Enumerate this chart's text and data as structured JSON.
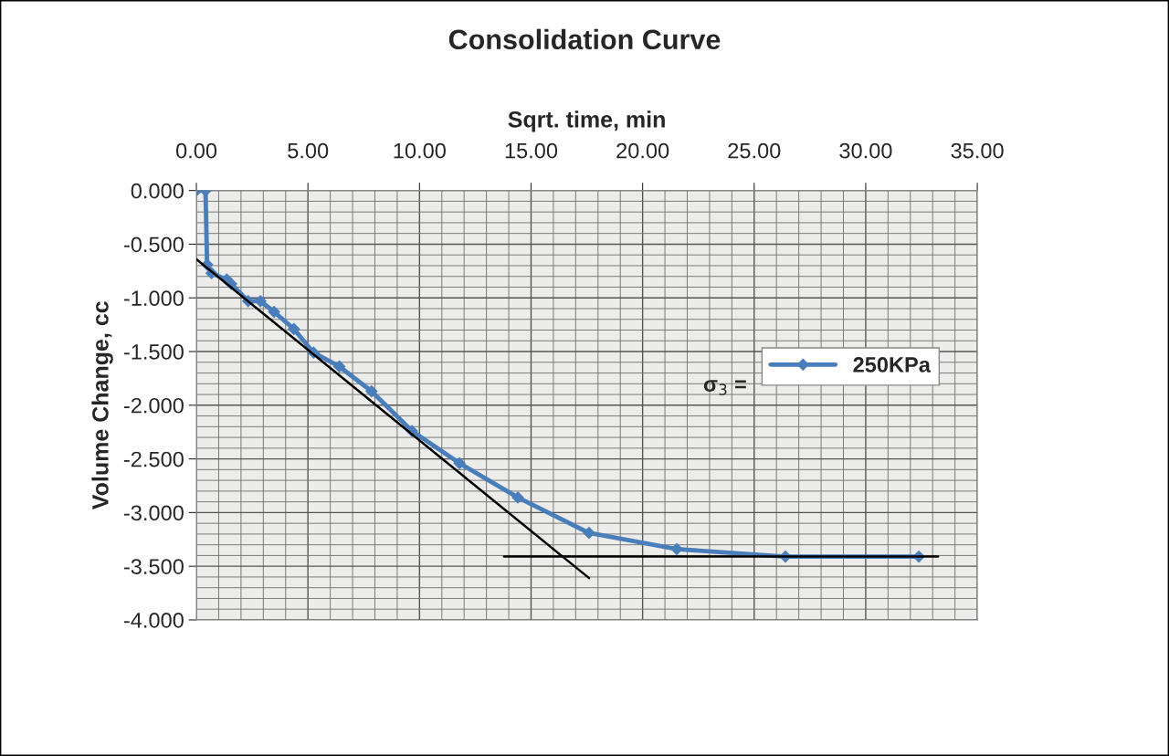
{
  "chart_data": {
    "type": "line",
    "title": "Consolidation Curve",
    "xlabel": "Sqrt. time, min",
    "ylabel": "Volume Change, cc",
    "series": [
      {
        "name": "250KPa",
        "color": "#4a7ebb",
        "marker": "diamond",
        "line_style": "solid",
        "x": [
          0.0,
          0.41,
          0.48,
          0.68,
          1.36,
          1.56,
          2.32,
          2.87,
          3.48,
          4.37,
          5.25,
          6.41,
          7.85,
          9.66,
          11.79,
          14.41,
          17.6,
          21.53,
          26.4,
          32.38
        ],
        "values": [
          0.0,
          0.0,
          -0.69,
          -0.77,
          -0.83,
          -0.87,
          -1.03,
          -1.03,
          -1.13,
          -1.29,
          -1.51,
          -1.64,
          -1.87,
          -2.24,
          -2.54,
          -2.86,
          -3.19,
          -3.34,
          -3.41,
          -3.41
        ]
      },
      {
        "color": "#000000",
        "marker": "none",
        "line_style": "solid",
        "x": [
          0.0,
          17.6
        ],
        "values": [
          -0.64,
          -3.61
        ]
      },
      {
        "color": "#000000",
        "marker": "none",
        "line_style": "solid",
        "x": [
          13.79,
          33.24
        ],
        "values": [
          -3.41,
          -3.41
        ]
      }
    ],
    "xlim": [
      0,
      35
    ],
    "xticks": [
      {
        "value": 0,
        "label": "0.00"
      },
      {
        "value": 5,
        "label": "5.00"
      },
      {
        "value": 10,
        "label": "10.00"
      },
      {
        "value": 15,
        "label": "15.00"
      },
      {
        "value": 20,
        "label": "20.00"
      },
      {
        "value": 25,
        "label": "25.00"
      },
      {
        "value": 30,
        "label": "30.00"
      },
      {
        "value": 35,
        "label": "35.00"
      }
    ],
    "ylim": [
      -4,
      0
    ],
    "yticks": [
      {
        "value": 0,
        "label": "0.000"
      },
      {
        "value": -0.5,
        "label": "-0.500"
      },
      {
        "value": -1,
        "label": "-1.000"
      },
      {
        "value": -1.5,
        "label": "-1.500"
      },
      {
        "value": -2,
        "label": "-2.000"
      },
      {
        "value": -2.5,
        "label": "-2.500"
      },
      {
        "value": -3,
        "label": "-3.000"
      },
      {
        "value": -3.5,
        "label": "-3.500"
      },
      {
        "value": -4,
        "label": "-4.000"
      }
    ],
    "grid": true,
    "legend": "right",
    "annotations": [
      "σ$_{3}$ ="
    ]
  }
}
